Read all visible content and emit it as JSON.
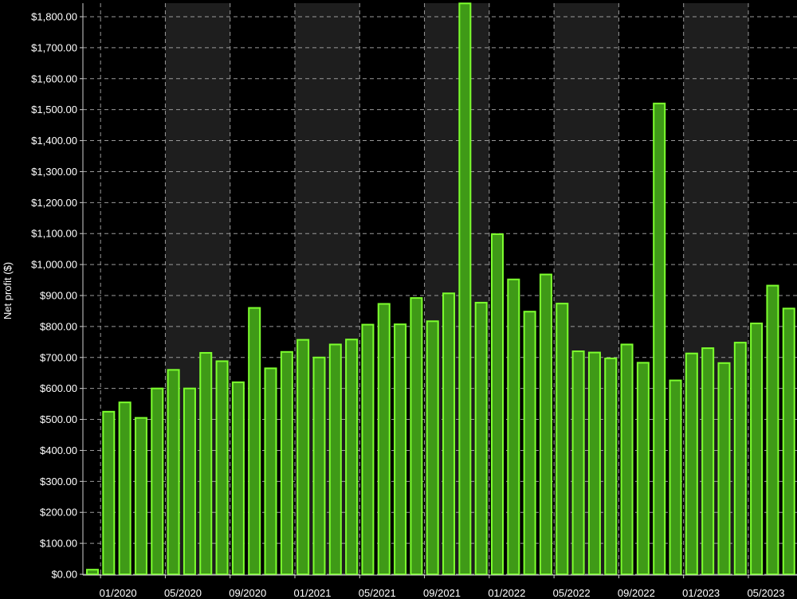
{
  "chart_data": {
    "type": "bar",
    "title": "",
    "xlabel": "",
    "ylabel": "Net profit ($)",
    "ylim": [
      0,
      1840
    ],
    "y_ticks": [
      "$0.00",
      "$100.00",
      "$200.00",
      "$300.00",
      "$400.00",
      "$500.00",
      "$600.00",
      "$700.00",
      "$800.00",
      "$900.00",
      "$1,000.00",
      "$1,100.00",
      "$1,200.00",
      "$1,300.00",
      "$1,400.00",
      "$1,500.00",
      "$1,600.00",
      "$1,700.00",
      "$1,800.00"
    ],
    "x_ticks": [
      "01/2020",
      "05/2020",
      "09/2020",
      "01/2021",
      "05/2021",
      "09/2021",
      "01/2022",
      "05/2022",
      "09/2022",
      "01/2023",
      "05/2023"
    ],
    "grid": true,
    "colors": {
      "bar_fill": "#3f9a17",
      "bar_edge": "#7dff2e",
      "band": "#1e1e1e",
      "background": "#000000",
      "grid": "#9a9a9a"
    },
    "categories": [
      "12/2019",
      "01/2020",
      "02/2020",
      "03/2020",
      "04/2020",
      "05/2020",
      "06/2020",
      "07/2020",
      "08/2020",
      "09/2020",
      "10/2020",
      "11/2020",
      "12/2020",
      "01/2021",
      "02/2021",
      "03/2021",
      "04/2021",
      "05/2021",
      "06/2021",
      "07/2021",
      "08/2021",
      "09/2021",
      "10/2021",
      "11/2021",
      "12/2021",
      "01/2022",
      "02/2022",
      "03/2022",
      "04/2022",
      "05/2022",
      "06/2022",
      "07/2022",
      "08/2022",
      "09/2022",
      "10/2022",
      "11/2022",
      "12/2022",
      "01/2023",
      "02/2023",
      "03/2023",
      "04/2023",
      "05/2023",
      "06/2023",
      "07/2023"
    ],
    "values": [
      15,
      525,
      555,
      505,
      600,
      660,
      600,
      715,
      688,
      620,
      860,
      665,
      718,
      757,
      700,
      742,
      758,
      806,
      873,
      807,
      892,
      817,
      907,
      1843,
      877,
      1098,
      952,
      848,
      968,
      874,
      720,
      716,
      697,
      742,
      683,
      1520,
      626,
      713,
      730,
      682,
      748,
      810,
      932,
      858
    ]
  }
}
